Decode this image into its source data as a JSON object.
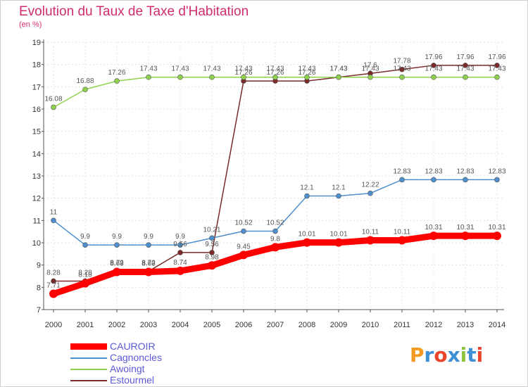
{
  "page": {
    "title": "Evolution du Taux de Taxe d'Habitation",
    "unit": "(en %)",
    "logo": "Proxiti"
  },
  "colors": {
    "title": "#d02d6e",
    "legend_text": "#5a5ad6"
  },
  "chart_data": {
    "type": "line",
    "title": "Evolution du Taux de Taxe d'Habitation",
    "subtitle": "(en %)",
    "xlabel": "",
    "ylabel": "",
    "x": [
      "2000",
      "2001",
      "2002",
      "2003",
      "2004",
      "2005",
      "2006",
      "2007",
      "2008",
      "2009",
      "2010",
      "2011",
      "2012",
      "2013",
      "2014"
    ],
    "ylim": [
      7,
      19
    ],
    "yticks": [
      "7",
      "8",
      "9",
      "10",
      "11",
      "12",
      "13",
      "14",
      "15",
      "16",
      "17",
      "18",
      "19"
    ],
    "grid": true,
    "legend_position": "bottom-left",
    "series": [
      {
        "name": "CAUROIR",
        "color": "#ff0000",
        "values": [
          7.71,
          8.18,
          8.69,
          8.69,
          8.74,
          8.98,
          9.45,
          9.8,
          10.01,
          10.01,
          10.11,
          10.11,
          10.31,
          10.31,
          10.31
        ],
        "labels": [
          "7.71",
          "8.18",
          "8.69",
          "8.69",
          "8.74",
          "8.98",
          "9.45",
          "9.8",
          "10.01",
          "10.01",
          "10.11",
          "10.11",
          "10.31",
          "10.31",
          "10.31"
        ]
      },
      {
        "name": "Cagnoncles",
        "color": "#4f8fce",
        "values": [
          11,
          9.9,
          9.9,
          9.9,
          9.9,
          10.21,
          10.52,
          10.52,
          12.1,
          12.1,
          12.22,
          12.83,
          12.83,
          12.83,
          12.83
        ],
        "labels": [
          "11",
          "9.9",
          "9.9",
          "9.9",
          "9.9",
          "10.21",
          "10.52",
          "10.52",
          "12.1",
          "12.1",
          "12.22",
          "12.83",
          "12.83",
          "12.83",
          "12.83"
        ]
      },
      {
        "name": "Awoingt",
        "color": "#8fd14f",
        "values": [
          16.08,
          16.88,
          17.26,
          17.43,
          17.43,
          17.43,
          17.43,
          17.43,
          17.43,
          17.43,
          17.43,
          17.43,
          17.43,
          17.43,
          17.43
        ],
        "labels": [
          "16.08",
          "16.88",
          "17.26",
          "17.43",
          "17.43",
          "17.43",
          "17.43",
          "17.43",
          "17.43",
          "17.43",
          "17.43",
          "17.43",
          "17.43",
          "17.43",
          "17.43"
        ]
      },
      {
        "name": "Estourmel",
        "color": "#7a2a2a",
        "values": [
          8.28,
          8.28,
          8.72,
          8.72,
          9.56,
          9.56,
          17.26,
          17.26,
          17.26,
          17.43,
          17.6,
          17.78,
          17.96,
          17.96,
          17.96
        ],
        "labels": [
          "8.28",
          "8.28",
          "8.72",
          "8.72",
          "9.56",
          "9.56",
          "17.26",
          "17.26",
          "17.26",
          "17.43",
          "17.6",
          "17.78",
          "17.96",
          "17.96",
          "17.96"
        ]
      }
    ]
  }
}
